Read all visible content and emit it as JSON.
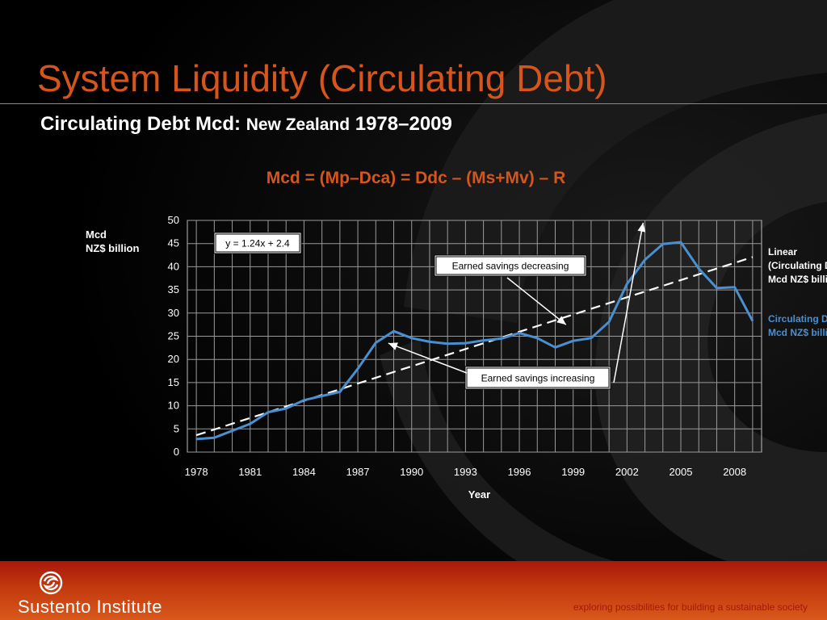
{
  "slide": {
    "title": "System Liquidity (Circulating Debt)",
    "subtitle_a": "Circulating Debt Mcd:",
    "subtitle_b": "New Zealand",
    "subtitle_c": "1978–2009",
    "formula": "Mcd = (Mp–Dca) = Ddc – (Ms+Mv) – R"
  },
  "footer": {
    "logo_text": "Sustento Institute",
    "tagline": "exploring possibilities for building a sustainable society"
  },
  "colors": {
    "title": "#d5551c",
    "series": "#4a8fd0",
    "trendline": "#ffffff",
    "footer": "#c23a0f"
  },
  "chart_data": {
    "type": "line",
    "ylabel_line1": "Mcd",
    "ylabel_line2": "NZ$ billion",
    "xlabel": "Year",
    "ylim": [
      0,
      50
    ],
    "xlim": [
      1977.5,
      2009.5
    ],
    "yticks": [
      "0",
      "5",
      "10",
      "15",
      "20",
      "25",
      "30",
      "35",
      "40",
      "45",
      "50"
    ],
    "xticks": [
      "1978",
      "1981",
      "1984",
      "1987",
      "1990",
      "1993",
      "1996",
      "1999",
      "2002",
      "2005",
      "2008"
    ],
    "grid": true,
    "legend_position": "right",
    "series": [
      {
        "name": "Circulating Debt Mcd NZ$ billion",
        "legend_lines": [
          "Circulating Debt",
          "Mcd NZ$ billion"
        ],
        "color": "#4a8fd0",
        "x": [
          1978,
          1979,
          1980,
          1981,
          1982,
          1983,
          1984,
          1985,
          1986,
          1987,
          1988,
          1989,
          1990,
          1991,
          1992,
          1993,
          1994,
          1995,
          1996,
          1997,
          1998,
          1999,
          2000,
          2001,
          2002,
          2003,
          2004,
          2005,
          2006,
          2007,
          2008,
          2009
        ],
        "y": [
          2.8,
          3.1,
          4.6,
          6.1,
          8.6,
          9.4,
          11.2,
          12.1,
          13.0,
          18.0,
          23.6,
          26.1,
          24.6,
          23.8,
          23.4,
          23.5,
          24.1,
          24.5,
          25.7,
          24.6,
          22.6,
          24.0,
          24.6,
          28.1,
          36.3,
          41.5,
          44.9,
          45.3,
          39.6,
          35.4,
          35.6,
          28.3
        ]
      },
      {
        "name": "Linear (Circulating Debt Mcd NZ$ billion)",
        "legend_lines": [
          "Linear",
          "(Circulating Debt",
          "Mcd NZ$ billion)"
        ],
        "color": "#ffffff",
        "dashed": true,
        "x": [
          1978,
          2009
        ],
        "y": [
          3.64,
          42.08
        ]
      }
    ],
    "annotations": [
      {
        "text": "y = 1.24x + 2.4",
        "type": "equation-box"
      },
      {
        "text": "Earned savings decreasing",
        "type": "callout",
        "target": [
          1998.6,
          27.5
        ]
      },
      {
        "text": "Earned savings increasing",
        "type": "callout",
        "targets": [
          [
            1988.7,
            23.5
          ],
          [
            2002.9,
            49.5
          ]
        ]
      }
    ]
  }
}
